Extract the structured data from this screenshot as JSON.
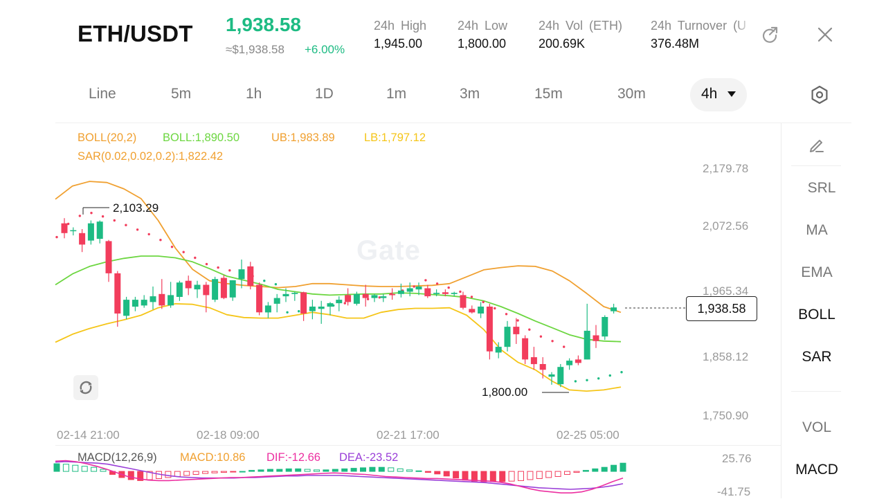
{
  "header": {
    "pair": "ETH/USDT",
    "last_price": "1,938.58",
    "approx_price": "≈$1,938.58",
    "change": "+6.00%",
    "stats": [
      {
        "label": "24h High",
        "value": "1,945.00"
      },
      {
        "label": "24h Low",
        "value": "1,800.00"
      },
      {
        "label": "24h Vol (ETH)",
        "value": "200.69K"
      },
      {
        "label": "24h Turnover (U",
        "value": "376.48M"
      }
    ],
    "share_icon": "share-icon",
    "close_icon": "close-icon"
  },
  "timeframes": {
    "tabs": [
      "Line",
      "5m",
      "1h",
      "1D",
      "1m",
      "3m",
      "15m",
      "30m"
    ],
    "selected": "4h",
    "settings_icon": "settings-icon"
  },
  "indicators": {
    "boll": {
      "label": "BOLL(20,2)",
      "mid": "BOLL:1,890.50",
      "ub": "UB:1,983.89",
      "lb": "LB:1,797.12"
    },
    "sar": {
      "label": "SAR(0.02,0.02,0.2):1,822.42"
    },
    "macd": {
      "label": "MACD(12,26,9)",
      "macd": "MACD:10.86",
      "dif": "DIF:-12.66",
      "dea": "DEA:-23.52"
    }
  },
  "side_panel": {
    "draw_icon": "pencil-icon",
    "items": [
      "SRL",
      "MA",
      "EMA",
      "BOLL",
      "SAR",
      "VOL",
      "MACD"
    ],
    "active": [
      "BOLL",
      "SAR",
      "MACD"
    ]
  },
  "chart": {
    "watermark": "Gate",
    "current_price": "1,938.58",
    "high_marker": "2,103.29",
    "low_marker": "1,800.00",
    "reset_icon": "rotate-icon",
    "colors": {
      "up": "#1dbb83",
      "down": "#f23d5c",
      "ub": "#f0a030",
      "mid": "#6cd640",
      "lb": "#f5c518",
      "dif": "#ec2fa0",
      "dea": "#9a3fd8"
    }
  },
  "chart_data": {
    "type": "candlestick",
    "price_axis": [
      "2,179.78",
      "2,072.56",
      "1,965.34",
      "1,858.12",
      "1,750.90"
    ],
    "time_axis": [
      "02-14 21:00",
      "02-18 09:00",
      "02-21 17:00",
      "02-25 05:00"
    ],
    "macd_axis": [
      "25.76",
      "-41.75"
    ],
    "candles": [
      {
        "o": 2085,
        "h": 2094,
        "l": 2059,
        "c": 2068
      },
      {
        "o": 2072,
        "h": 2078,
        "l": 2064,
        "c": 2073
      },
      {
        "o": 2068,
        "h": 2075,
        "l": 2035,
        "c": 2048
      },
      {
        "o": 2055,
        "h": 2090,
        "l": 2048,
        "c": 2085
      },
      {
        "o": 2058,
        "h": 2090,
        "l": 2050,
        "c": 2088
      },
      {
        "o": 2054,
        "h": 2056,
        "l": 1983,
        "c": 1998
      },
      {
        "o": 1998,
        "h": 2002,
        "l": 1905,
        "c": 1928
      },
      {
        "o": 1924,
        "h": 1957,
        "l": 1918,
        "c": 1952
      },
      {
        "o": 1940,
        "h": 1957,
        "l": 1932,
        "c": 1952
      },
      {
        "o": 1942,
        "h": 1960,
        "l": 1938,
        "c": 1952
      },
      {
        "o": 1948,
        "h": 1975,
        "l": 1935,
        "c": 1958
      },
      {
        "o": 1962,
        "h": 1988,
        "l": 1936,
        "c": 1942
      },
      {
        "o": 1942,
        "h": 1983,
        "l": 1938,
        "c": 1960
      },
      {
        "o": 1957,
        "h": 1985,
        "l": 1950,
        "c": 1982
      },
      {
        "o": 1985,
        "h": 1994,
        "l": 1960,
        "c": 1972
      },
      {
        "o": 1970,
        "h": 1985,
        "l": 1955,
        "c": 1978
      },
      {
        "o": 1978,
        "h": 1983,
        "l": 1930,
        "c": 1960
      },
      {
        "o": 1952,
        "h": 1992,
        "l": 1948,
        "c": 1988
      },
      {
        "o": 1990,
        "h": 1995,
        "l": 1953,
        "c": 1955
      },
      {
        "o": 1956,
        "h": 1986,
        "l": 1950,
        "c": 1986
      },
      {
        "o": 1988,
        "h": 2022,
        "l": 1972,
        "c": 2005
      },
      {
        "o": 2010,
        "h": 2018,
        "l": 1970,
        "c": 1976
      },
      {
        "o": 1978,
        "h": 1982,
        "l": 1925,
        "c": 1930
      },
      {
        "o": 1930,
        "h": 1948,
        "l": 1920,
        "c": 1942
      },
      {
        "o": 1945,
        "h": 1962,
        "l": 1930,
        "c": 1955
      },
      {
        "o": 1958,
        "h": 1972,
        "l": 1948,
        "c": 1962
      },
      {
        "o": 1962,
        "h": 1966,
        "l": 1950,
        "c": 1964
      },
      {
        "o": 1965,
        "h": 1966,
        "l": 1915,
        "c": 1928
      },
      {
        "o": 1932,
        "h": 1952,
        "l": 1918,
        "c": 1940
      },
      {
        "o": 1936,
        "h": 1950,
        "l": 1910,
        "c": 1940
      },
      {
        "o": 1940,
        "h": 1948,
        "l": 1925,
        "c": 1946
      },
      {
        "o": 1946,
        "h": 1958,
        "l": 1932,
        "c": 1952
      },
      {
        "o": 1960,
        "h": 1972,
        "l": 1942,
        "c": 1948
      },
      {
        "o": 1945,
        "h": 1966,
        "l": 1942,
        "c": 1962
      },
      {
        "o": 1962,
        "h": 1978,
        "l": 1940,
        "c": 1955
      },
      {
        "o": 1955,
        "h": 1962,
        "l": 1948,
        "c": 1960
      },
      {
        "o": 1955,
        "h": 1962,
        "l": 1948,
        "c": 1958
      },
      {
        "o": 1962,
        "h": 1972,
        "l": 1952,
        "c": 1960
      },
      {
        "o": 1962,
        "h": 1980,
        "l": 1956,
        "c": 1968
      },
      {
        "o": 1966,
        "h": 1982,
        "l": 1958,
        "c": 1972
      },
      {
        "o": 1970,
        "h": 1982,
        "l": 1960,
        "c": 1975
      },
      {
        "o": 1972,
        "h": 1978,
        "l": 1955,
        "c": 1958
      },
      {
        "o": 1962,
        "h": 1970,
        "l": 1958,
        "c": 1964
      },
      {
        "o": 1965,
        "h": 1970,
        "l": 1958,
        "c": 1962
      },
      {
        "o": 1962,
        "h": 1966,
        "l": 1958,
        "c": 1964
      },
      {
        "o": 1960,
        "h": 1966,
        "l": 1935,
        "c": 1938
      },
      {
        "o": 1936,
        "h": 1942,
        "l": 1928,
        "c": 1930
      },
      {
        "o": 1928,
        "h": 1948,
        "l": 1920,
        "c": 1940
      },
      {
        "o": 1940,
        "h": 1945,
        "l": 1848,
        "c": 1862
      },
      {
        "o": 1860,
        "h": 1878,
        "l": 1850,
        "c": 1870
      },
      {
        "o": 1870,
        "h": 1915,
        "l": 1862,
        "c": 1905
      },
      {
        "o": 1905,
        "h": 1920,
        "l": 1875,
        "c": 1892
      },
      {
        "o": 1885,
        "h": 1890,
        "l": 1840,
        "c": 1848
      },
      {
        "o": 1852,
        "h": 1870,
        "l": 1830,
        "c": 1840
      },
      {
        "o": 1840,
        "h": 1852,
        "l": 1815,
        "c": 1830
      },
      {
        "o": 1818,
        "h": 1826,
        "l": 1804,
        "c": 1822
      },
      {
        "o": 1805,
        "h": 1840,
        "l": 1800,
        "c": 1835
      },
      {
        "o": 1838,
        "h": 1850,
        "l": 1830,
        "c": 1846
      },
      {
        "o": 1848,
        "h": 1855,
        "l": 1838,
        "c": 1842
      },
      {
        "o": 1848,
        "h": 1945,
        "l": 1848,
        "c": 1898
      },
      {
        "o": 1890,
        "h": 1908,
        "l": 1868,
        "c": 1880
      },
      {
        "o": 1888,
        "h": 1925,
        "l": 1882,
        "c": 1922
      },
      {
        "o": 1932,
        "h": 1945,
        "l": 1928,
        "c": 1938.58
      }
    ],
    "boll_ub": [
      2127,
      2150,
      2158,
      2156,
      2145,
      2128,
      2090,
      2042,
      2005,
      1985,
      1980,
      1977,
      1975,
      1973,
      1975,
      1980,
      1980,
      1978,
      1976,
      1975,
      1975,
      1976,
      1977,
      1980,
      1992,
      2004,
      2008,
      2011,
      2010,
      2002,
      1985,
      1963,
      1940,
      1930
    ],
    "boll_mid": [
      1978,
      1997,
      2010,
      2018,
      2024,
      2028,
      2028,
      2025,
      2018,
      2006,
      1993,
      1986,
      1979,
      1970,
      1966,
      1962,
      1960,
      1961,
      1962,
      1962,
      1964,
      1963,
      1961,
      1959,
      1956,
      1950,
      1940,
      1928,
      1915,
      1903,
      1891,
      1883,
      1880,
      1879
    ],
    "boll_lb": [
      1878,
      1892,
      1902,
      1910,
      1917,
      1925,
      1938,
      1945,
      1944,
      1938,
      1926,
      1921,
      1920,
      1920,
      1925,
      1930,
      1926,
      1920,
      1920,
      1930,
      1935,
      1937,
      1937,
      1938,
      1925,
      1900,
      1865,
      1843,
      1830,
      1810,
      1795,
      1793,
      1795,
      1800
    ],
    "sar": [
      2061,
      2084,
      2098,
      2103,
      2097,
      2090,
      2082,
      2074,
      2066,
      2056,
      2044,
      2035,
      2025,
      2014,
      2008,
      2003,
      1998,
      1993,
      1985,
      1979,
      1930,
      1932,
      1935,
      1938,
      1942,
      1946,
      1950,
      1953,
      1956,
      1962,
      1968,
      1975,
      1986,
      1980,
      1973,
      1966,
      1957,
      1948,
      1937,
      1927,
      1916,
      1900,
      1888,
      1880,
      1870,
      1810,
      1812,
      1815,
      1820,
      1826
    ],
    "macd_hist": [
      15,
      14,
      12,
      10,
      8,
      4,
      -6,
      -12,
      -16,
      -18,
      -16,
      -14,
      -12,
      -10,
      -8,
      -6,
      -4,
      -3,
      -2,
      -1,
      0,
      2,
      3,
      4,
      4,
      5,
      5,
      4,
      3,
      3,
      4,
      5,
      6,
      7,
      8,
      8,
      7,
      5,
      3,
      1,
      -2,
      -5,
      -9,
      -13,
      -17,
      -19,
      -20,
      -20,
      -20,
      -19,
      -18,
      -16,
      -14,
      -12,
      -10,
      -6,
      -2,
      2,
      5,
      8,
      12,
      16
    ],
    "macd_dif": [
      20,
      21,
      19,
      15,
      10,
      4,
      -3,
      -10,
      -14,
      -17,
      -18,
      -18,
      -17,
      -16,
      -15,
      -14,
      -13,
      -12,
      -12,
      -11,
      -10,
      -9,
      -8,
      -7,
      -6,
      -5,
      -4,
      -3,
      -4,
      -5,
      -6,
      -8,
      -10,
      -11,
      -12,
      -13,
      -14,
      -14,
      -15,
      -16,
      -17,
      -18,
      -19,
      -21,
      -24,
      -29,
      -34,
      -38,
      -40,
      -42,
      -42,
      -40,
      -35,
      -28,
      -20,
      -13
    ],
    "macd_dea": [
      18,
      19,
      18,
      17,
      16,
      14,
      10,
      6,
      2,
      -2,
      -6,
      -9,
      -11,
      -12,
      -13,
      -13,
      -13,
      -13,
      -12,
      -12,
      -11,
      -10,
      -9,
      -9,
      -8,
      -8,
      -8,
      -8,
      -9,
      -10,
      -11,
      -12,
      -13,
      -14,
      -15,
      -16,
      -17,
      -18,
      -19,
      -20,
      -21,
      -22,
      -24,
      -26,
      -28,
      -30,
      -32,
      -33,
      -34,
      -35,
      -34,
      -33,
      -31,
      -28,
      -24
    ]
  }
}
